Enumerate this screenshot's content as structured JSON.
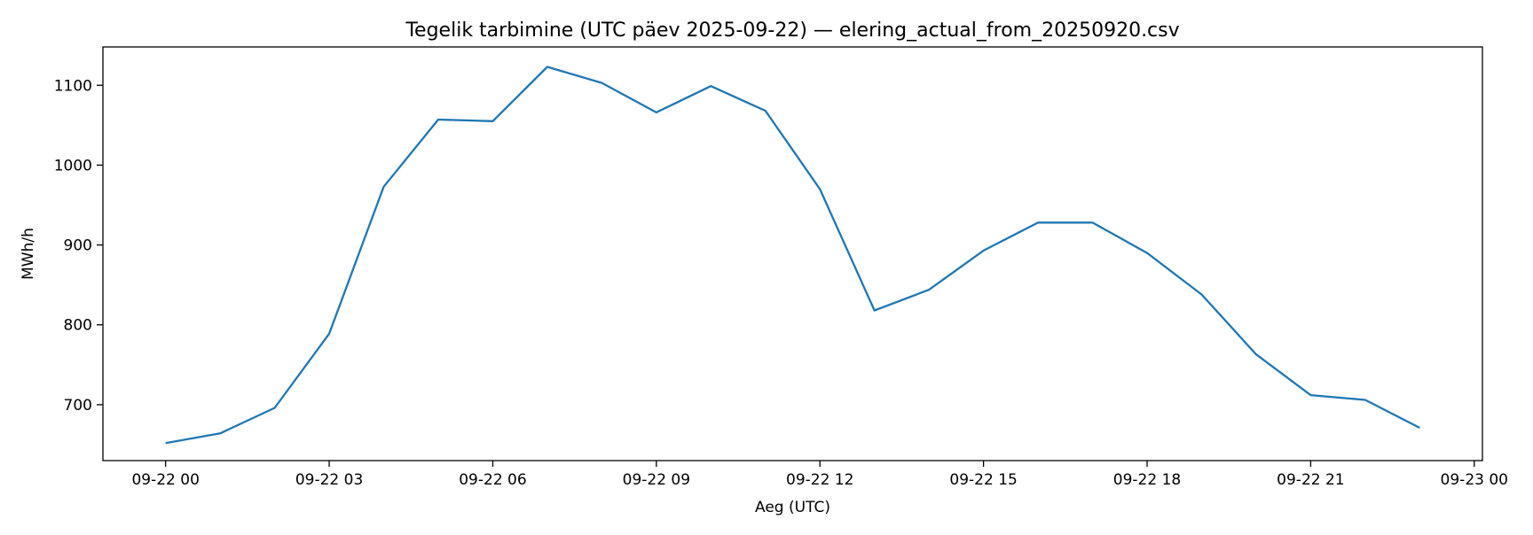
{
  "chart_data": {
    "type": "line",
    "title": "Tegelik tarbimine (UTC päev 2025-09-22) — elering_actual_from_20250920.csv",
    "xlabel": "Aeg (UTC)",
    "ylabel": "MWh/h",
    "x_ticks": [
      "09-22 00",
      "09-22 03",
      "09-22 06",
      "09-22 09",
      "09-22 12",
      "09-22 15",
      "09-22 18",
      "09-22 21",
      "09-23 00"
    ],
    "x_tick_hours": [
      0,
      3,
      6,
      9,
      12,
      15,
      18,
      21,
      24
    ],
    "y_ticks": [
      700,
      800,
      900,
      1000,
      1100
    ],
    "xlim_hours": [
      -1.15,
      24.15
    ],
    "ylim": [
      630,
      1148
    ],
    "grid": false,
    "color": "#1f77b4",
    "series": [
      {
        "x_hours": [
          0,
          1,
          2,
          3,
          4,
          5,
          6,
          7,
          8,
          9,
          10,
          11,
          12,
          13,
          14,
          15,
          16,
          17,
          18,
          19,
          20,
          21,
          22,
          23
        ],
        "values": [
          652,
          664,
          696,
          789,
          973,
          1057,
          1055,
          1123,
          1103,
          1066,
          1099,
          1068,
          970,
          818,
          844,
          893,
          928,
          928,
          890,
          838,
          763,
          712,
          706,
          671
        ]
      }
    ]
  }
}
